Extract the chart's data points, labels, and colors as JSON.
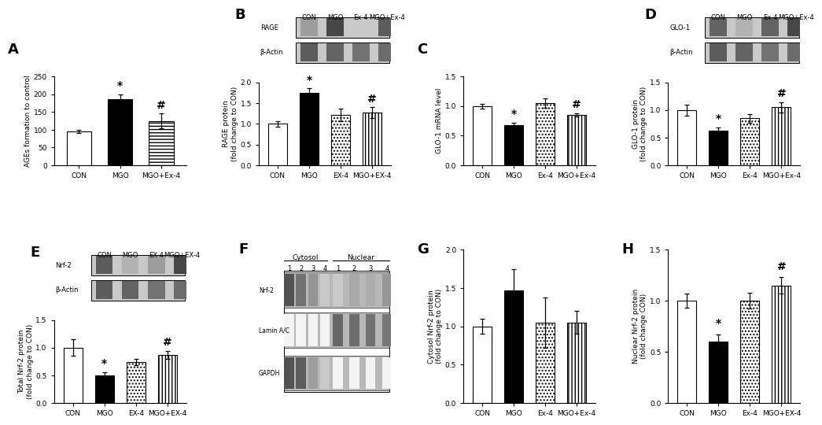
{
  "panel_A": {
    "categories": [
      "CON",
      "MGO",
      "MGO+Ex-4"
    ],
    "values": [
      95,
      185,
      125
    ],
    "errors": [
      4,
      15,
      20
    ],
    "ylabel": "AGEs formation to control",
    "ylim": [
      0,
      250
    ],
    "yticks": [
      0,
      50,
      100,
      150,
      200,
      250
    ],
    "stars": [
      "",
      "*",
      "#"
    ],
    "label": "A",
    "bar_colors": [
      "white",
      "black",
      "white"
    ],
    "bar_hatches": [
      "",
      "",
      "----"
    ]
  },
  "panel_B_bar": {
    "categories": [
      "CON",
      "MGO",
      "EX-4",
      "MGO+EX-4"
    ],
    "values": [
      1.0,
      1.75,
      1.22,
      1.27
    ],
    "errors": [
      0.07,
      0.11,
      0.15,
      0.13
    ],
    "ylabel": "RAGE protein\n(fold change to CON)",
    "ylim": [
      0,
      2.0
    ],
    "yticks": [
      0.0,
      0.5,
      1.0,
      1.5,
      2.0
    ],
    "stars": [
      "",
      "*",
      "",
      "#"
    ],
    "label": "B",
    "bar_colors": [
      "white",
      "black",
      "white",
      "white"
    ],
    "bar_hatches": [
      "",
      "",
      "....",
      "||||"
    ]
  },
  "panel_B_blot": {
    "col_labels": [
      "CON",
      "MGO",
      "Ex-4",
      "MGO+Ex-4"
    ],
    "row_labels": [
      "RAGE",
      "β-Actin"
    ],
    "row0_intensities": [
      0.45,
      0.85,
      0.25,
      0.75
    ],
    "row1_intensities": [
      0.75,
      0.72,
      0.65,
      0.68
    ]
  },
  "panel_C": {
    "categories": [
      "CON",
      "MGO",
      "Ex-4",
      "MGO+Ex-4"
    ],
    "values": [
      1.0,
      0.68,
      1.05,
      0.85
    ],
    "errors": [
      0.04,
      0.04,
      0.08,
      0.03
    ],
    "ylabel": "GLO-1 mRNA level",
    "ylim": [
      0,
      1.5
    ],
    "yticks": [
      0.0,
      0.5,
      1.0,
      1.5
    ],
    "stars": [
      "",
      "*",
      "",
      "#"
    ],
    "label": "C",
    "bar_colors": [
      "white",
      "black",
      "white",
      "white"
    ],
    "bar_hatches": [
      "",
      "",
      "....",
      "||||"
    ]
  },
  "panel_D_bar": {
    "categories": [
      "CON",
      "MGO",
      "Ex-4",
      "MGO+Ex-4"
    ],
    "values": [
      1.0,
      0.62,
      0.85,
      1.05
    ],
    "errors": [
      0.1,
      0.07,
      0.08,
      0.09
    ],
    "ylabel": "GLO-1 protein\n(fold change to CON)",
    "ylim": [
      0,
      1.5
    ],
    "yticks": [
      0.0,
      0.5,
      1.0,
      1.5
    ],
    "stars": [
      "",
      "*",
      "",
      "#"
    ],
    "label": "D",
    "bar_colors": [
      "white",
      "black",
      "white",
      "white"
    ],
    "bar_hatches": [
      "",
      "",
      "....",
      "||||"
    ]
  },
  "panel_D_blot": {
    "col_labels": [
      "CON",
      "MGO",
      "Ex-4",
      "MGO+Ex-4"
    ],
    "row_labels": [
      "GLO-1",
      "β-Actin"
    ],
    "row0_intensities": [
      0.72,
      0.35,
      0.72,
      0.85
    ],
    "row1_intensities": [
      0.75,
      0.72,
      0.65,
      0.68
    ]
  },
  "panel_E_bar": {
    "categories": [
      "CON",
      "MGO",
      "EX-4",
      "MGO+EX-4"
    ],
    "values": [
      1.0,
      0.5,
      0.74,
      0.87
    ],
    "errors": [
      0.15,
      0.06,
      0.06,
      0.07
    ],
    "ylabel": "Total Nrf-2 protein\n(fold change to CON)",
    "ylim": [
      0,
      1.5
    ],
    "yticks": [
      0.0,
      0.5,
      1.0,
      1.5
    ],
    "stars": [
      "",
      "*",
      "",
      "#"
    ],
    "label": "E",
    "bar_colors": [
      "white",
      "black",
      "white",
      "white"
    ],
    "bar_hatches": [
      "",
      "",
      "....",
      "||||"
    ]
  },
  "panel_E_blot": {
    "col_labels": [
      "CON",
      "MGO",
      "EX-4",
      "MGO+EX-4"
    ],
    "row_labels": [
      "Nrf-2",
      "β-Actin"
    ],
    "row0_intensities": [
      0.75,
      0.35,
      0.45,
      0.85
    ],
    "row1_intensities": [
      0.75,
      0.72,
      0.65,
      0.68
    ]
  },
  "panel_F": {
    "label": "F",
    "cytosol_label": "Cytosol",
    "nuclear_label": "Nuclear",
    "lane_nums": [
      "1",
      "2",
      "3",
      "4"
    ],
    "row_labels": [
      "Nrf-2",
      "Lamin A/C",
      "GAPDH"
    ],
    "nrf2_cyt": [
      0.8,
      0.65,
      0.5,
      0.25
    ],
    "nrf2_nuc": [
      0.25,
      0.4,
      0.38,
      0.48
    ],
    "laminAC_cyt": [
      0.05,
      0.05,
      0.05,
      0.05
    ],
    "laminAC_nuc": [
      0.7,
      0.68,
      0.65,
      0.63
    ],
    "gapdh_cyt": [
      0.8,
      0.75,
      0.45,
      0.25
    ],
    "gapdh_nuc": [
      0.05,
      0.05,
      0.05,
      0.05
    ]
  },
  "panel_G": {
    "categories": [
      "CON",
      "MGO",
      "Ex-4",
      "MGO+Ex-4"
    ],
    "values": [
      1.0,
      1.47,
      1.05,
      1.05
    ],
    "errors": [
      0.1,
      0.28,
      0.33,
      0.15
    ],
    "ylabel": "Cytosol Nrf-2 protein\n(fold change to CON)",
    "ylim": [
      0,
      2.0
    ],
    "yticks": [
      0.0,
      0.5,
      1.0,
      1.5,
      2.0
    ],
    "stars": [
      "",
      "",
      "",
      ""
    ],
    "label": "G",
    "bar_colors": [
      "white",
      "black",
      "white",
      "white"
    ],
    "bar_hatches": [
      "",
      "",
      "....",
      "||||"
    ]
  },
  "panel_H": {
    "categories": [
      "CON",
      "MGO",
      "Ex-4",
      "MGO+EX-4"
    ],
    "values": [
      1.0,
      0.6,
      1.0,
      1.15
    ],
    "errors": [
      0.07,
      0.07,
      0.08,
      0.08
    ],
    "ylabel": "Nuclear Nrf-2 protein\n(fold change CON)",
    "ylim": [
      0,
      1.5
    ],
    "yticks": [
      0.0,
      0.5,
      1.0,
      1.5
    ],
    "stars": [
      "",
      "*",
      "",
      "#"
    ],
    "label": "H",
    "bar_colors": [
      "white",
      "black",
      "white",
      "white"
    ],
    "bar_hatches": [
      "",
      "",
      "....",
      "||||"
    ]
  }
}
